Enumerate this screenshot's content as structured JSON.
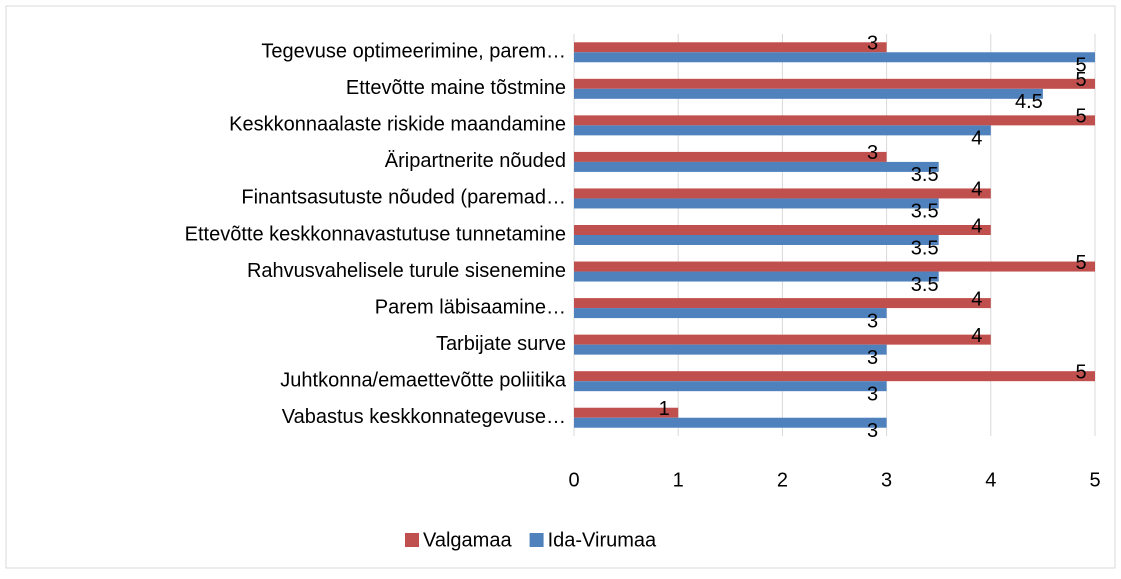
{
  "chart_data": {
    "type": "bar",
    "orientation": "horizontal",
    "categories": [
      "Tegevuse optimeerimine, parem…",
      "Ettevõtte maine tõstmine",
      "Keskkonnaalaste riskide maandamine",
      "Äripartnerite nõuded",
      "Finantsasutuste nõuded (paremad…",
      "Ettevõtte keskkonnavastutuse tunnetamine",
      "Rahvusvahelisele turule sisenemine",
      "Parem läbisaamine…",
      "Tarbijate surve",
      "Juhtkonna/emaettevõtte poliitika",
      "Vabastus keskkonnategevuse…"
    ],
    "series": [
      {
        "name": "Valgamaa",
        "color": "#c0504d",
        "values": [
          3,
          5,
          5,
          3,
          4,
          4,
          5,
          4,
          4,
          5,
          1
        ]
      },
      {
        "name": "Ida-Virumaa",
        "color": "#4f81bd",
        "values": [
          5,
          4.5,
          4,
          3.5,
          3.5,
          3.5,
          3.5,
          3,
          3,
          3,
          3
        ]
      }
    ],
    "xlim": [
      0,
      5
    ],
    "xticks": [
      0,
      1,
      2,
      3,
      4,
      5
    ],
    "grid": true,
    "legend": "bottom"
  }
}
